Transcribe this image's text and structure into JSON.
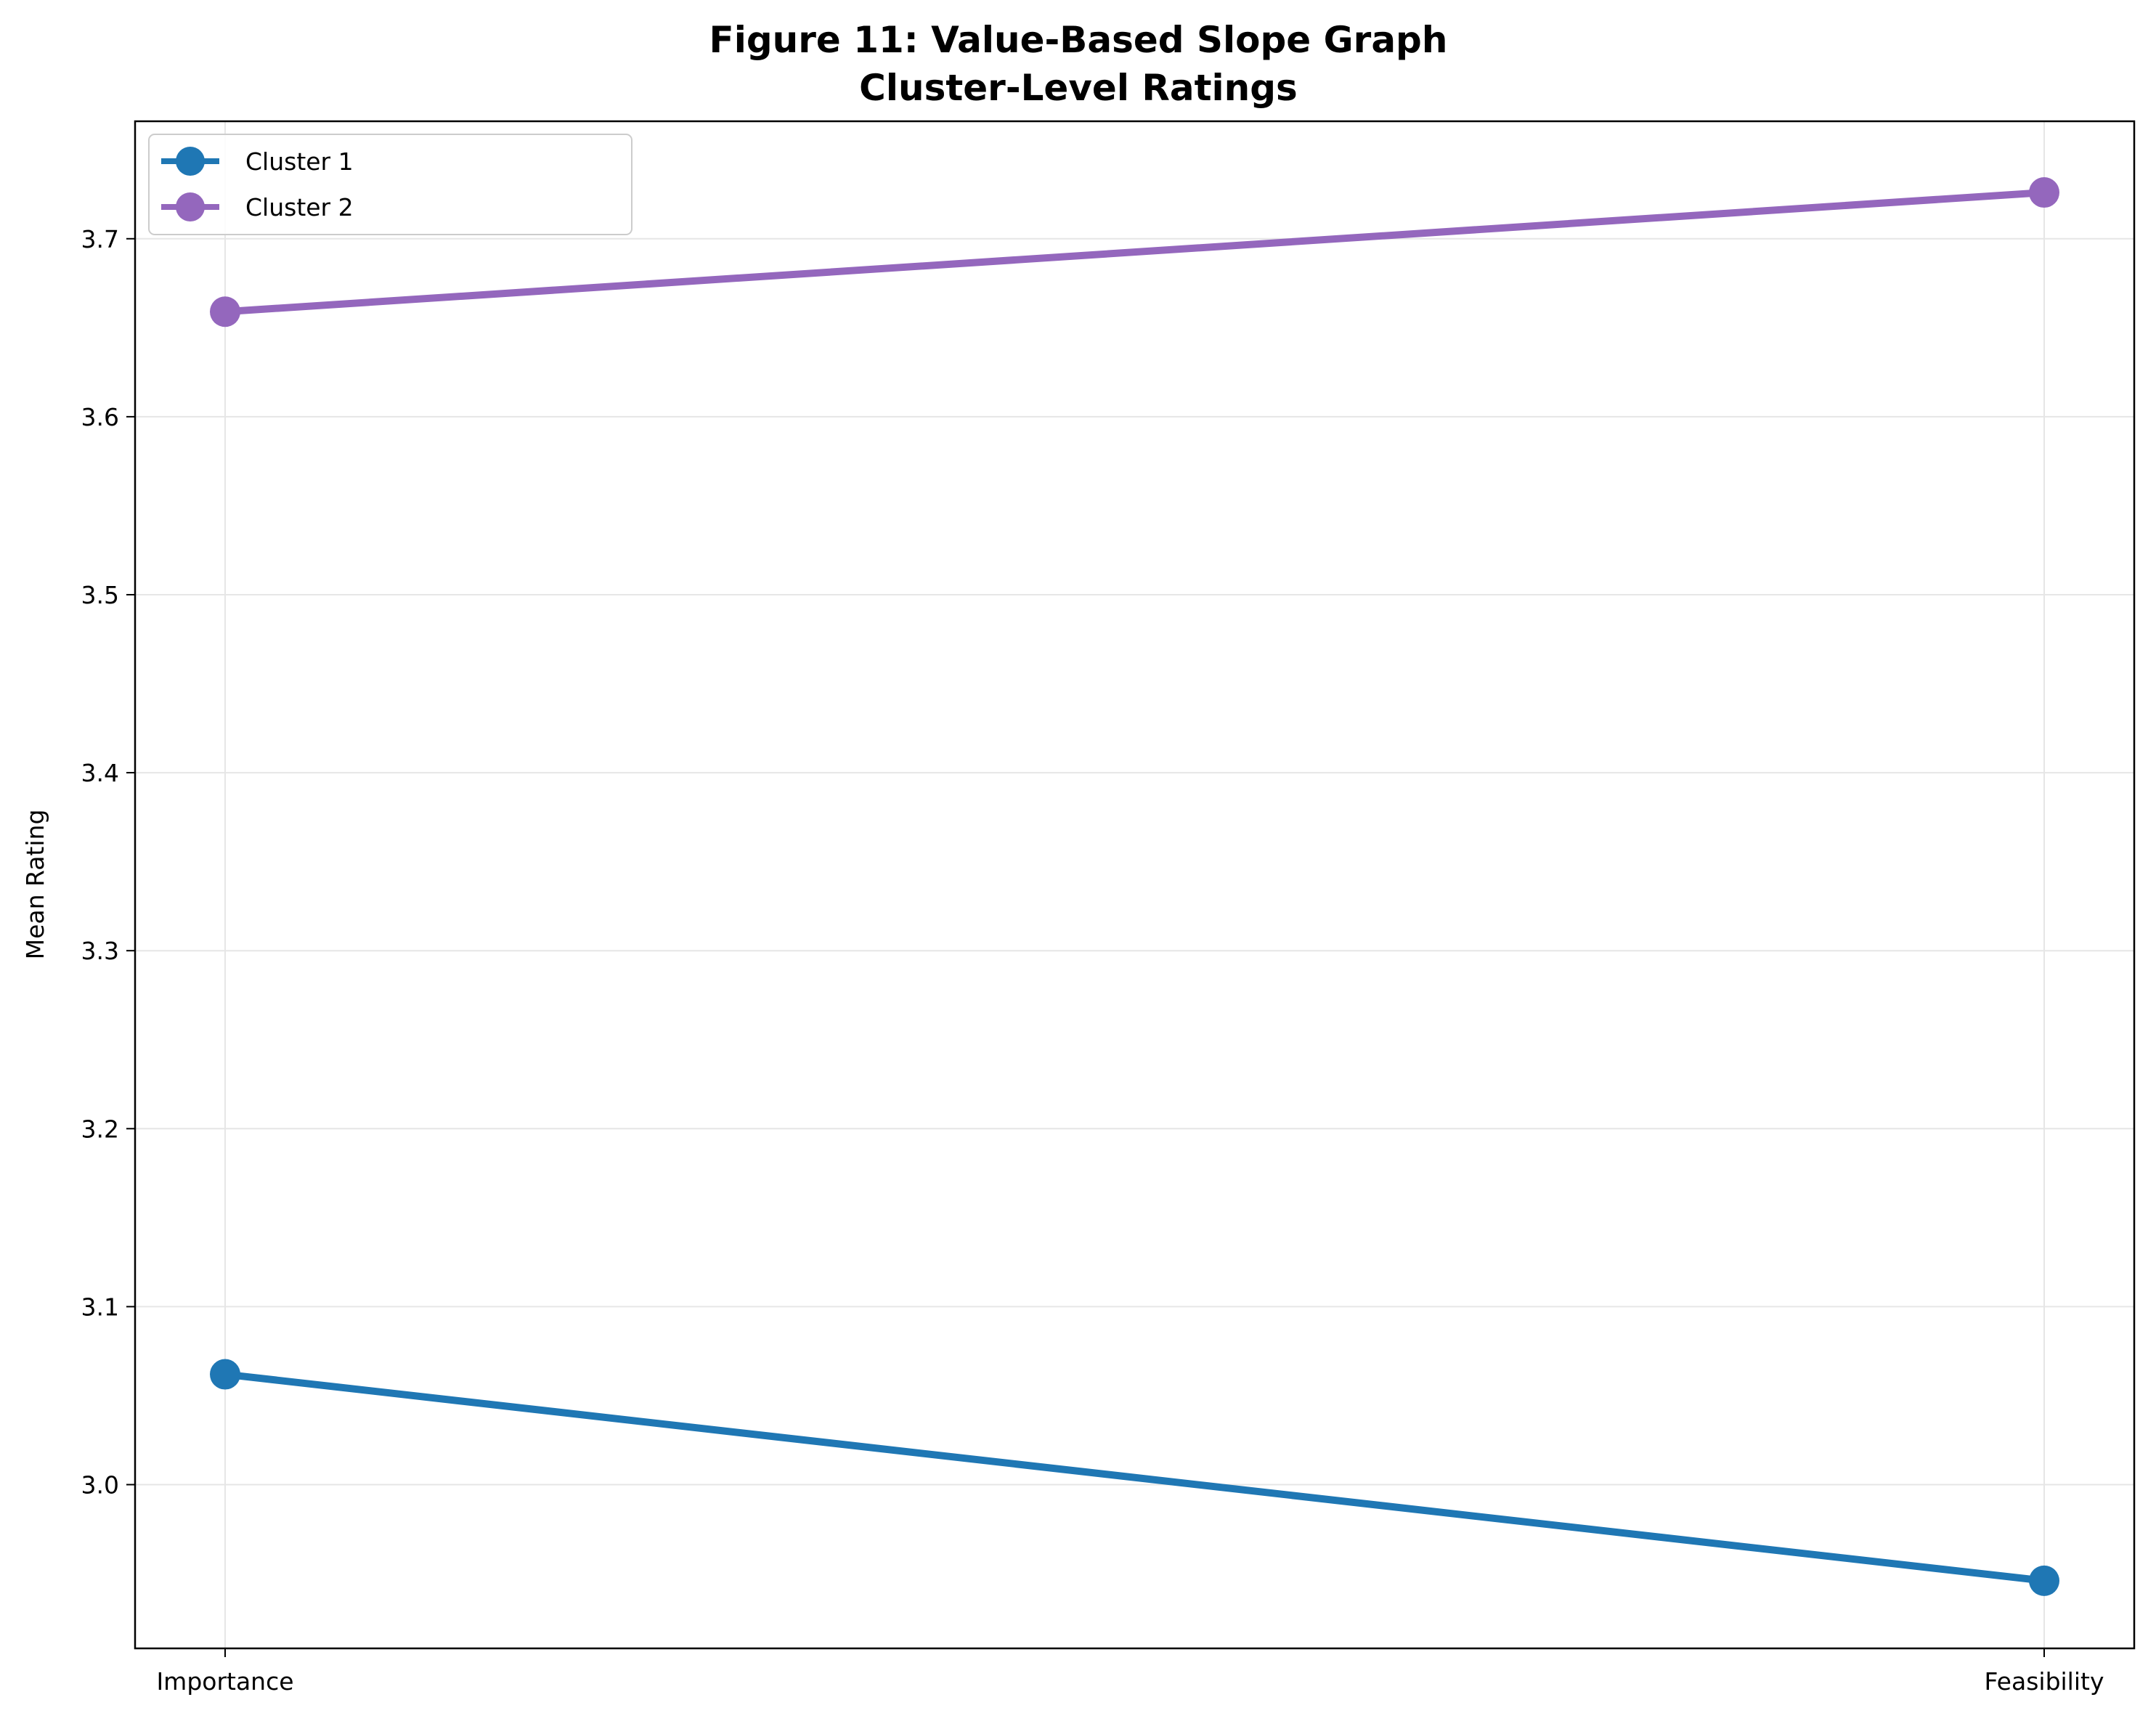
{
  "chart_data": {
    "type": "line",
    "title": "Figure 11: Value-Based Slope Graph",
    "subtitle": "Cluster-Level Ratings",
    "xlabel": "",
    "ylabel": "Mean Rating",
    "categories": [
      "Importance",
      "Feasibility"
    ],
    "ylim": [
      2.908,
      3.766
    ],
    "yticks": [
      "3.0",
      "3.1",
      "3.2",
      "3.3",
      "3.4",
      "3.5",
      "3.6",
      "3.7"
    ],
    "grid": true,
    "legend_position": "top-left",
    "series": [
      {
        "name": "Cluster 1",
        "color": "#1f77b4",
        "values": [
          3.062,
          2.946
        ]
      },
      {
        "name": "Cluster 2",
        "color": "#9467bd",
        "values": [
          3.659,
          3.726
        ]
      }
    ]
  }
}
